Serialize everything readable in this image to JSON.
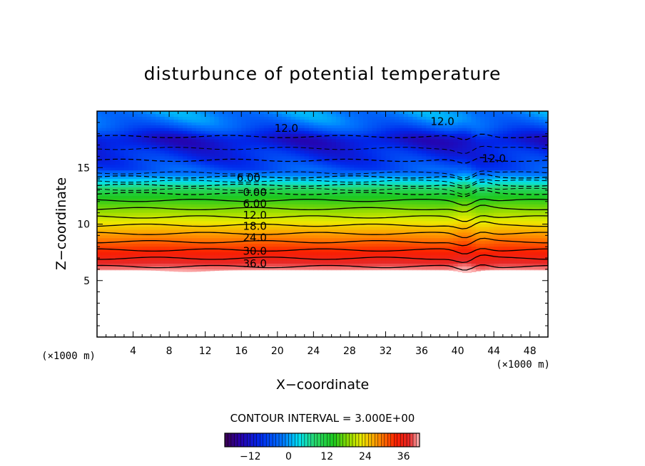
{
  "chart_data": {
    "type": "heatmap",
    "title": "disturbunce of potential temperature",
    "xlabel": "X−coordinate",
    "ylabel": "Z−coordinate",
    "x_unit": "(×1000 m)",
    "y_unit": "(×1000 m)",
    "xlim": [
      0,
      50
    ],
    "ylim": [
      0,
      20
    ],
    "x_ticks": [
      4,
      8,
      12,
      16,
      20,
      24,
      28,
      32,
      36,
      40,
      44,
      48
    ],
    "y_ticks": [
      5,
      10,
      15
    ],
    "contour_interval_text": "CONTOUR INTERVAL = 3.000E+00",
    "contour_interval": 3,
    "contour_labels": [
      {
        "text": "6.00",
        "x": 16.8,
        "z": 14.1
      },
      {
        "text": "0.00",
        "x": 17.5,
        "z": 12.8
      },
      {
        "text": "6.00",
        "x": 17.5,
        "z": 11.8
      },
      {
        "text": "12.0",
        "x": 17.5,
        "z": 10.8
      },
      {
        "text": "18.0",
        "x": 17.5,
        "z": 9.8
      },
      {
        "text": "24.0",
        "x": 17.5,
        "z": 8.8
      },
      {
        "text": "30.0",
        "x": 17.5,
        "z": 7.6
      },
      {
        "text": "36.0",
        "x": 17.5,
        "z": 6.5
      },
      {
        "text": "12.0",
        "x": 21.0,
        "z": 18.5
      },
      {
        "text": "12.0",
        "x": 38.3,
        "z": 19.1
      },
      {
        "text": "12.0",
        "x": 44.0,
        "z": 15.8
      }
    ],
    "colorbar": {
      "ticks": [
        -12,
        0,
        12,
        24,
        36
      ],
      "min": -20,
      "max": 41
    },
    "grid": false
  }
}
